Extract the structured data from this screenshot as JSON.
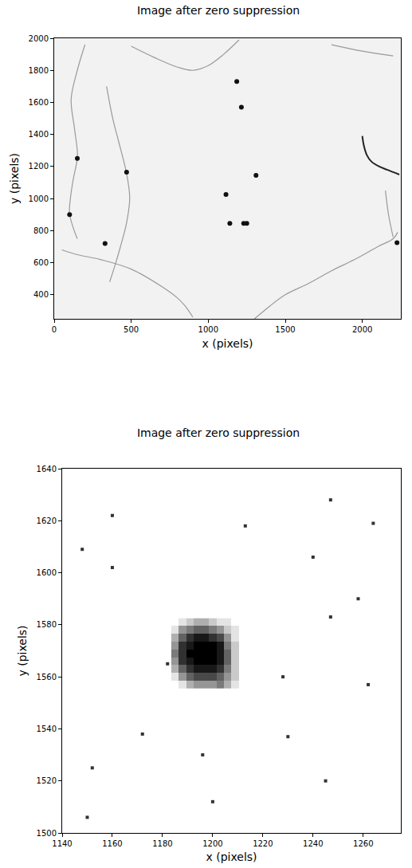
{
  "chart_data": [
    {
      "type": "scatter",
      "title": "Image after zero suppression",
      "x_label": "x (pixels)",
      "y_label": "y (pixels)",
      "xlim": [
        0,
        2250
      ],
      "ylim": [
        250,
        2000
      ],
      "xticks": [
        0,
        500,
        1000,
        1500,
        2000
      ],
      "yticks": [
        400,
        600,
        800,
        1000,
        1200,
        1400,
        1600,
        1800,
        2000
      ],
      "series": [
        {
          "type": "line",
          "color": "#9a9a9a",
          "x": [
            200,
            150,
            110,
            130,
            150,
            150,
            120,
            100,
            100,
            130,
            150
          ],
          "y": [
            1960,
            1800,
            1620,
            1450,
            1300,
            1250,
            1100,
            950,
            900,
            800,
            750
          ]
        },
        {
          "type": "line",
          "color": "#9a9a9a",
          "x": [
            500,
            650,
            800,
            900,
            1000,
            1100,
            1200
          ],
          "y": [
            1950,
            1880,
            1820,
            1800,
            1830,
            1900,
            1990
          ]
        },
        {
          "type": "line",
          "color": "#9a9a9a",
          "x": [
            340,
            380,
            420,
            460,
            480,
            490,
            470,
            430,
            400,
            360
          ],
          "y": [
            1700,
            1500,
            1350,
            1200,
            1100,
            1000,
            850,
            700,
            600,
            480
          ]
        },
        {
          "type": "line",
          "color": "#9a9a9a",
          "x": [
            50,
            150,
            300,
            500,
            700,
            800,
            850,
            900
          ],
          "y": [
            680,
            650,
            620,
            560,
            450,
            380,
            330,
            260
          ]
        },
        {
          "type": "line",
          "color": "#9a9a9a",
          "x": [
            1300,
            1400,
            1500,
            1650,
            1800,
            1950,
            2100,
            2200,
            2230
          ],
          "y": [
            250,
            330,
            400,
            470,
            550,
            620,
            700,
            750,
            790
          ]
        },
        {
          "type": "line",
          "color": "#9a9a9a",
          "x": [
            2200,
            2170,
            2150
          ],
          "y": [
            760,
            900,
            1050
          ]
        },
        {
          "type": "line",
          "color": "#9a9a9a",
          "x": [
            1800,
            2000,
            2200
          ],
          "y": [
            1960,
            1920,
            1890
          ]
        },
        {
          "type": "line",
          "color": "#222222",
          "x": [
            2000,
            2010,
            2030,
            2060,
            2110,
            2160,
            2240
          ],
          "y": [
            1390,
            1330,
            1270,
            1230,
            1200,
            1180,
            1150
          ]
        },
        {
          "type": "scatter",
          "marker": "circle",
          "color": "#111111",
          "x": [
            1185,
            1215,
            1310,
            1115,
            1140,
            1230,
            1250,
            470,
            150,
            100,
            2225,
            330
          ],
          "y": [
            1730,
            1570,
            1145,
            1025,
            845,
            845,
            845,
            1165,
            1250,
            900,
            725,
            720
          ]
        }
      ]
    },
    {
      "type": "heatmap",
      "title": "Image after zero suppression",
      "x_label": "x (pixels)",
      "y_label": "y (pixels)",
      "xlim": [
        1140,
        1275
      ],
      "ylim": [
        1500,
        1640
      ],
      "xticks": [
        1140,
        1160,
        1180,
        1200,
        1220,
        1240,
        1260
      ],
      "yticks": [
        1500,
        1520,
        1540,
        1560,
        1580,
        1600,
        1620,
        1640
      ],
      "x": [
        1185,
        1188,
        1191,
        1194,
        1197,
        1200,
        1203,
        1206,
        1209
      ],
      "y": [
        1557,
        1560,
        1563,
        1566,
        1569,
        1572,
        1575,
        1578,
        1581
      ],
      "z": [
        [
          0,
          0.1,
          0.3,
          0.4,
          0.4,
          0.4,
          0.5,
          0.3,
          0.1
        ],
        [
          0.1,
          0.4,
          0.6,
          0.7,
          0.7,
          0.7,
          0.6,
          0.4,
          0.2
        ],
        [
          0.3,
          0.6,
          0.8,
          0.9,
          0.9,
          0.9,
          0.8,
          0.5,
          0.2
        ],
        [
          0.4,
          0.8,
          0.9,
          1,
          1,
          1,
          0.9,
          0.6,
          0.2
        ],
        [
          0.5,
          0.8,
          1,
          1,
          1,
          1,
          0.9,
          0.6,
          0.2
        ],
        [
          0.4,
          0.8,
          0.9,
          1,
          1,
          1,
          0.9,
          0.5,
          0.2
        ],
        [
          0.3,
          0.6,
          0.8,
          0.9,
          0.9,
          0.8,
          0.7,
          0.4,
          0.1
        ],
        [
          0.1,
          0.4,
          0.5,
          0.6,
          0.6,
          0.5,
          0.4,
          0.2,
          0.1
        ],
        [
          0,
          0.1,
          0.2,
          0.3,
          0.3,
          0.2,
          0.1,
          0.1,
          0
        ]
      ],
      "zlim": [
        0,
        1
      ],
      "series": [
        {
          "type": "scatter",
          "marker": "square",
          "color": "#333333",
          "x": [
            1148,
            1160,
            1172,
            1196,
            1228,
            1240,
            1247,
            1258,
            1264,
            1247,
            1213,
            1182,
            1150,
            1152,
            1262,
            1230,
            1160,
            1200,
            1245
          ],
          "y": [
            1609,
            1602,
            1538,
            1530,
            1560,
            1606,
            1583,
            1590,
            1619,
            1628,
            1618,
            1565,
            1506,
            1525,
            1557,
            1537,
            1622,
            1512,
            1520
          ]
        }
      ]
    }
  ]
}
